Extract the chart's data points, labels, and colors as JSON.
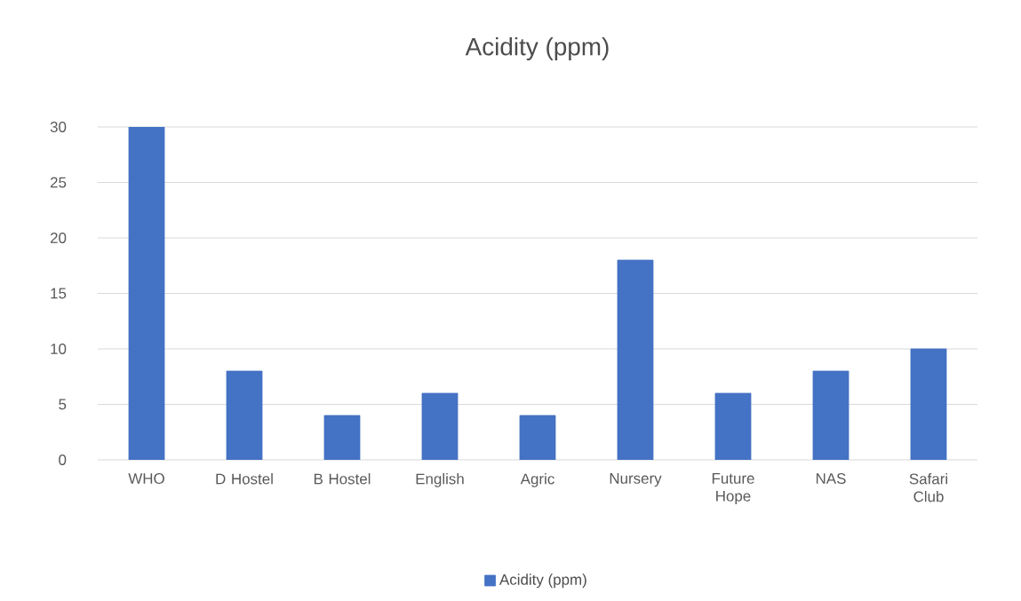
{
  "chart_data": {
    "type": "bar",
    "title": "Acidity (ppm)",
    "categories": [
      "WHO",
      "D Hostel",
      "B Hostel",
      "English",
      "Agric",
      "Nursery",
      "Future Hope",
      "NAS",
      "Safari Club"
    ],
    "series": [
      {
        "name": "Acidity (ppm)",
        "color": "#4472c4",
        "values": [
          30,
          8,
          4,
          6,
          4,
          18,
          6,
          8,
          10
        ]
      }
    ],
    "ylim": [
      0,
      30
    ],
    "yticks": [
      0,
      5,
      10,
      15,
      20,
      25,
      30
    ],
    "grid": "y",
    "legend": "bottom"
  }
}
